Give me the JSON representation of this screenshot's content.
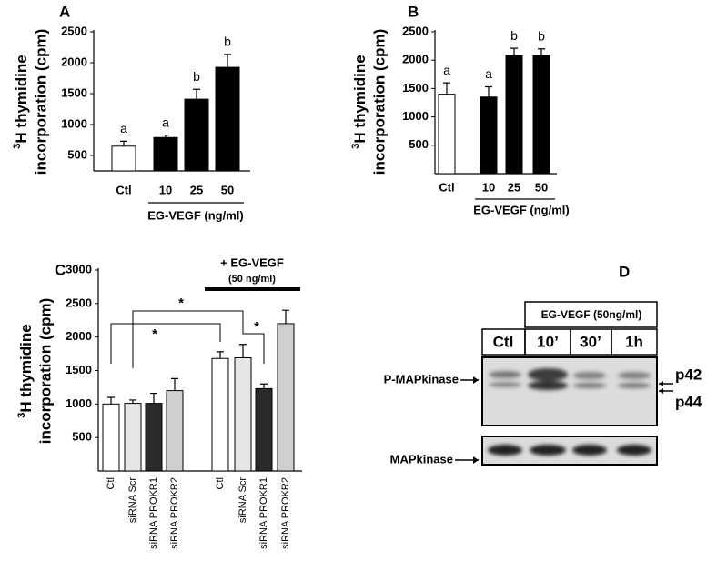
{
  "chart_data": [
    {
      "type": "bar",
      "label": "A",
      "ylabel_sup": "3",
      "ylabel": [
        "H thymidine",
        "incorporation (cpm)"
      ],
      "categories": [
        "Ctl",
        "10",
        "25",
        "50"
      ],
      "values": [
        650,
        790,
        1410,
        1925
      ],
      "errors": [
        80,
        40,
        160,
        210
      ],
      "colors": [
        "#ffffff",
        "#000000",
        "#000000",
        "#000000"
      ],
      "annotations": [
        "a",
        "a",
        "b",
        "b"
      ],
      "xlabel": "EG-VEGF (ng/ml)",
      "ylim": [
        250,
        2500
      ],
      "yticks": [
        500,
        1000,
        1500,
        2000,
        2500
      ]
    },
    {
      "type": "bar",
      "label": "B",
      "ylabel_sup": "3",
      "ylabel": [
        "H thymidine",
        "incorporation (cpm)"
      ],
      "categories": [
        "Ctl",
        "10",
        "25",
        "50"
      ],
      "values": [
        1400,
        1350,
        2080,
        2080
      ],
      "errors": [
        200,
        180,
        130,
        120
      ],
      "colors": [
        "#ffffff",
        "#000000",
        "#000000",
        "#000000"
      ],
      "annotations": [
        "a",
        "a",
        "b",
        "b"
      ],
      "xlabel": "EG-VEGF (ng/ml)",
      "ylim": [
        0,
        2500
      ],
      "yticks": [
        500,
        1000,
        1500,
        2000,
        2500
      ]
    },
    {
      "type": "bar",
      "label": "C",
      "ylabel_sup": "3",
      "ylabel": [
        "H thymidine",
        "incorporation (cpm)"
      ],
      "categories": [
        "Ctl",
        "siRNA Scr",
        "siRNA PROKR1",
        "siRNA PROKR2",
        "Ctl",
        "siRNA Scr",
        "siRNA PROKR1",
        "siRNA PROKR2"
      ],
      "values": [
        1000,
        1010,
        1010,
        1200,
        1680,
        1690,
        1230,
        2200
      ],
      "errors": [
        100,
        50,
        150,
        180,
        100,
        200,
        70,
        200
      ],
      "colors": [
        "#ffffff",
        "#e6e6e6",
        "#2a2a2a",
        "#cfcfcf",
        "#ffffff",
        "#e6e6e6",
        "#2a2a2a",
        "#cfcfcf"
      ],
      "annotations": [
        "*",
        "*",
        "*"
      ],
      "group_label": [
        "+ EG-VEGF",
        "(50 ng/ml)"
      ],
      "ylim": [
        0,
        3000
      ],
      "yticks": [
        500,
        1000,
        1500,
        2000,
        2500,
        3000
      ]
    }
  ],
  "blot": {
    "label": "D",
    "treatment": "EG-VEGF (50ng/ml)",
    "lanes": [
      "Ctl",
      "10’",
      "30’",
      "1h"
    ],
    "rows": [
      "P-MAPkinase",
      "MAPkinase"
    ],
    "bands": [
      "p42",
      "p44"
    ]
  }
}
